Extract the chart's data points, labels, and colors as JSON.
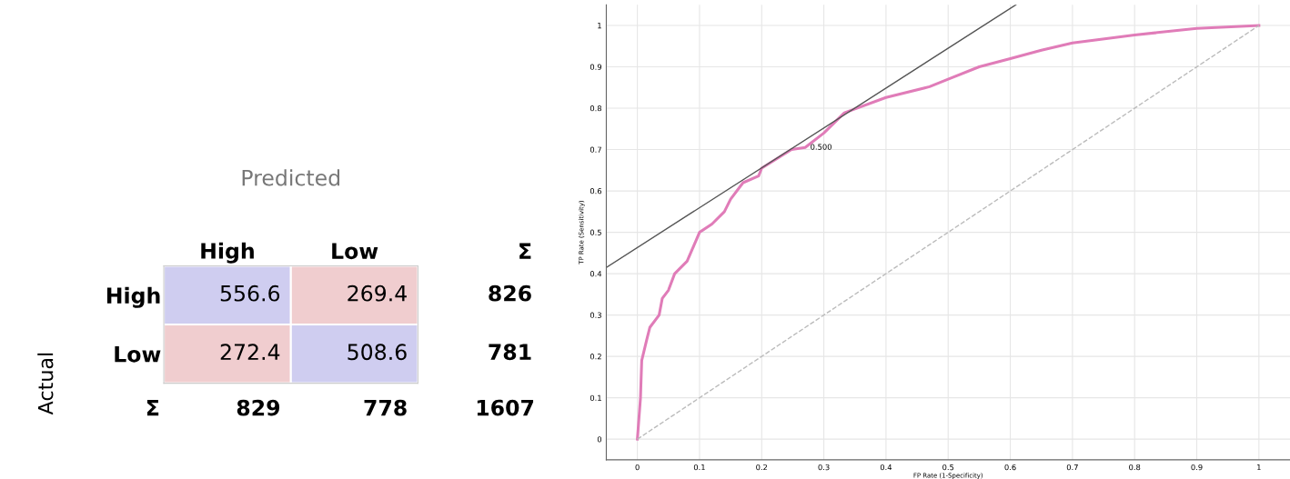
{
  "chart_data": [
    {
      "type": "heatmap",
      "xlabel": "Predicted",
      "ylabel": "Actual",
      "categories": [
        "High",
        "Low"
      ],
      "y_categories": [
        "High",
        "Low"
      ],
      "y2_categories": [
        "826",
        "781"
      ],
      "totals": [
        "829",
        "778",
        "1607"
      ],
      "annotations": [
        "Σ",
        "Σ"
      ],
      "cells": [
        [
          556.6,
          269.4
        ],
        [
          272.4,
          508.6
        ]
      ],
      "data_labels": true,
      "colors": [
        "#cfcdf0",
        "#f0cdcf"
      ]
    },
    {
      "type": "line",
      "xlabel": "FP Rate (1-Specificity)",
      "ylabel": "TP Rate (Sensitivity)",
      "xlim": [
        -0.05,
        1.05
      ],
      "ylim": [
        -0.05,
        1.05
      ],
      "xticks": [
        0,
        0.1,
        0.2,
        0.3,
        0.4,
        0.5,
        0.6,
        0.7,
        0.8,
        0.9,
        1
      ],
      "yticks": [
        0,
        0.1,
        0.2,
        0.3,
        0.4,
        0.5,
        0.6,
        0.7,
        0.8,
        0.9,
        1
      ],
      "grid": true,
      "annotations": [
        {
          "text": "0.500",
          "x": 0.27,
          "y": 0.705
        }
      ],
      "series": [
        {
          "color": "#e07cb8",
          "line_style": "solid",
          "x": [
            0,
            0.005,
            0.007,
            0.015,
            0.02,
            0.035,
            0.04,
            0.05,
            0.06,
            0.08,
            0.1,
            0.12,
            0.14,
            0.15,
            0.17,
            0.195,
            0.2,
            0.248,
            0.27,
            0.3,
            0.333,
            0.4,
            0.47,
            0.5,
            0.55,
            0.6,
            0.65,
            0.7,
            0.8,
            0.9,
            1
          ],
          "values": [
            0,
            0.1,
            0.19,
            0.24,
            0.27,
            0.3,
            0.34,
            0.36,
            0.4,
            0.43,
            0.5,
            0.52,
            0.55,
            0.58,
            0.62,
            0.636,
            0.655,
            0.7,
            0.705,
            0.74,
            0.789,
            0.826,
            0.852,
            0.87,
            0.9,
            0.92,
            0.94,
            0.958,
            0.977,
            0.993,
            1
          ]
        },
        {
          "color": "#555555",
          "line_style": "solid",
          "x": [
            -0.05,
            0.609
          ],
          "values": [
            0.415,
            1.05
          ]
        },
        {
          "color": "#bbbbbb",
          "line_style": "dashed",
          "x": [
            0,
            1
          ],
          "values": [
            0,
            1
          ]
        }
      ]
    }
  ]
}
